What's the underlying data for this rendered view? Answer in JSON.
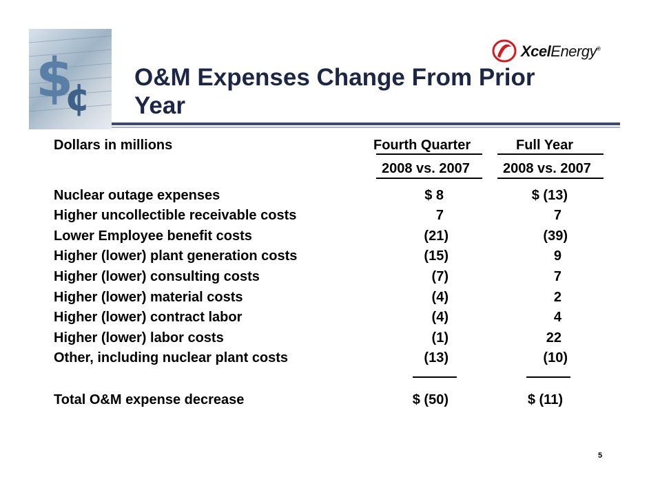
{
  "header": {
    "title": "O&M Expenses Change From Prior Year",
    "logo": {
      "brand_bold": "Xcel",
      "brand_light": "Energy",
      "registered": "®",
      "accent_color": "#d71920"
    }
  },
  "table": {
    "units_label": "Dollars in millions",
    "columns": [
      {
        "heading": "Fourth Quarter",
        "subheading": "2008 vs. 2007"
      },
      {
        "heading": "Full Year",
        "subheading": "2008 vs. 2007"
      }
    ],
    "rows": [
      {
        "label": "Nuclear outage expenses",
        "q": "$  8",
        "f": "$  (13)"
      },
      {
        "label": "Higher uncollectible receivable costs",
        "q": "7",
        "f": "7"
      },
      {
        "label": "Lower Employee benefit costs",
        "q": "(21)",
        "f": "(39)"
      },
      {
        "label": "Higher (lower) plant generation costs",
        "q": "(15)",
        "f": "9"
      },
      {
        "label": "Higher (lower) consulting costs",
        "q": "(7)",
        "f": "7"
      },
      {
        "label": "Higher (lower) material costs",
        "q": "(4)",
        "f": "2"
      },
      {
        "label": "Higher (lower) contract labor",
        "q": "(4)",
        "f": "4"
      },
      {
        "label": "Higher (lower) labor costs",
        "q": "(1)",
        "f": "22"
      },
      {
        "label": "Other, including nuclear plant costs",
        "q": "(13)",
        "f": "(10)"
      }
    ],
    "total": {
      "label": "Total O&M expense decrease",
      "q": "$  (50)",
      "f": "$  (11)"
    }
  },
  "page_number": "5"
}
